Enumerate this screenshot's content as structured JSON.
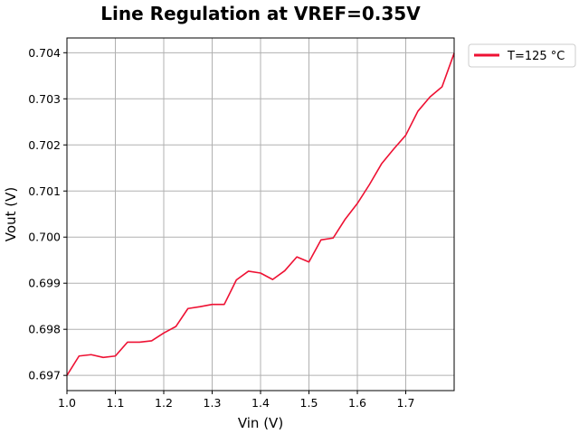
{
  "chart_data": {
    "type": "line",
    "title": "Line Regulation at VREF=0.35V",
    "xlabel": "Vin (V)",
    "ylabel": "Vout (V)",
    "xlim": [
      1.0,
      1.8
    ],
    "ylim": [
      0.69667,
      0.70432
    ],
    "xticks": [
      "1.0",
      "1.1",
      "1.2",
      "1.3",
      "1.4",
      "1.5",
      "1.6",
      "1.7"
    ],
    "yticks": [
      "0.697",
      "0.698",
      "0.699",
      "0.700",
      "0.701",
      "0.702",
      "0.703",
      "0.704"
    ],
    "grid": true,
    "legend_position": "outside top-right",
    "series": [
      {
        "name": "T=125 °C",
        "color": "#ee1133",
        "x": [
          1.0,
          1.025,
          1.05,
          1.075,
          1.1,
          1.125,
          1.15,
          1.175,
          1.2,
          1.225,
          1.25,
          1.275,
          1.3,
          1.325,
          1.35,
          1.375,
          1.4,
          1.425,
          1.45,
          1.475,
          1.5,
          1.525,
          1.55,
          1.575,
          1.6,
          1.625,
          1.65,
          1.675,
          1.7,
          1.725,
          1.75,
          1.775,
          1.8
        ],
        "y": [
          0.697,
          0.69742,
          0.69745,
          0.69739,
          0.69742,
          0.69772,
          0.69772,
          0.69775,
          0.69792,
          0.69806,
          0.69845,
          0.69849,
          0.69854,
          0.69854,
          0.69907,
          0.69926,
          0.69922,
          0.69908,
          0.69927,
          0.69957,
          0.69946,
          0.69994,
          0.69998,
          0.70039,
          0.70073,
          0.70114,
          0.70159,
          0.70191,
          0.70221,
          0.70273,
          0.70304,
          0.70326,
          0.70399
        ]
      }
    ]
  }
}
